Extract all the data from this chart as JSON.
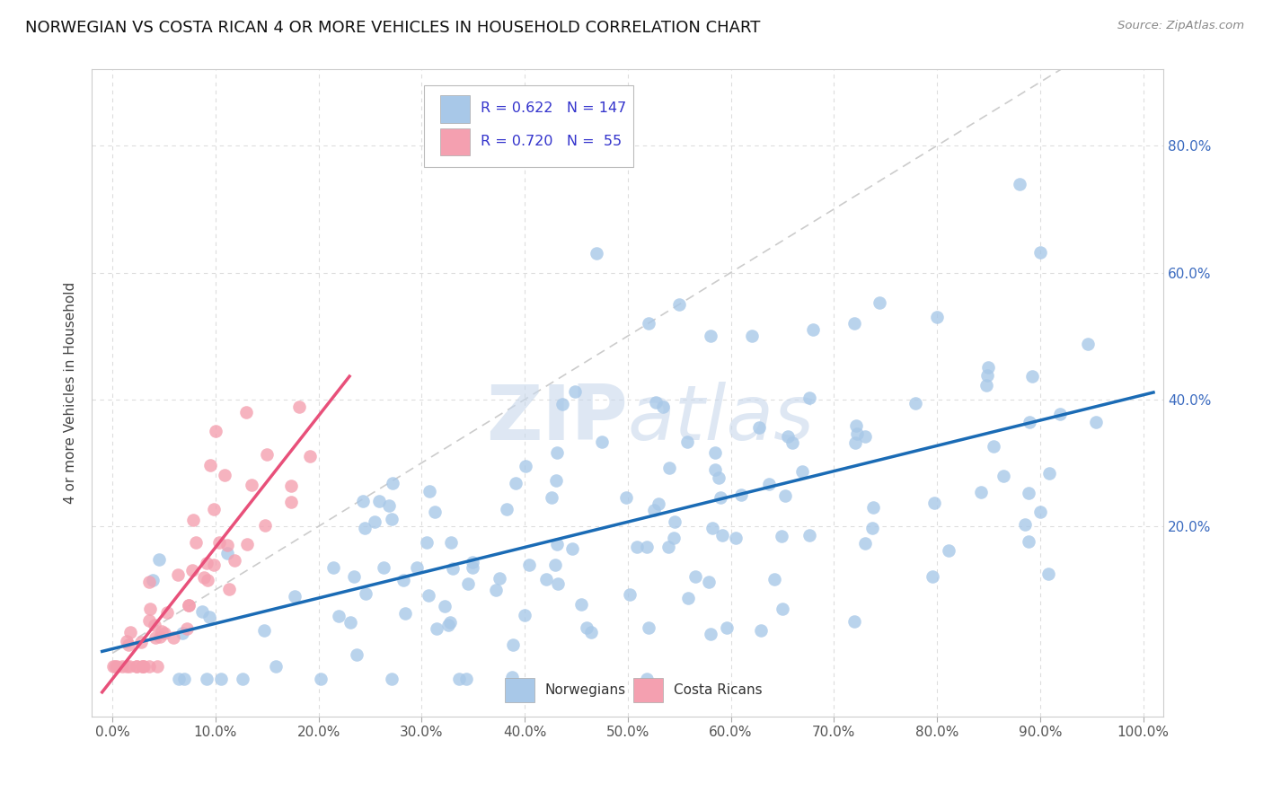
{
  "title": "NORWEGIAN VS COSTA RICAN 4 OR MORE VEHICLES IN HOUSEHOLD CORRELATION CHART",
  "source": "Source: ZipAtlas.com",
  "ylabel": "4 or more Vehicles in Household",
  "norwegian_R": 0.622,
  "norwegian_N": 147,
  "costarican_R": 0.72,
  "costarican_N": 55,
  "norwegian_color": "#a8c8e8",
  "costarican_color": "#f4a0b0",
  "norwegian_line_color": "#1a6bb5",
  "costarican_line_color": "#e8507a",
  "diagonal_color": "#cccccc",
  "background_color": "#ffffff",
  "grid_color": "#dddddd",
  "legend_text_color": "#3333cc",
  "watermark_color": "#c8d8ec",
  "figsize": [
    14.06,
    8.92
  ],
  "dpi": 100
}
